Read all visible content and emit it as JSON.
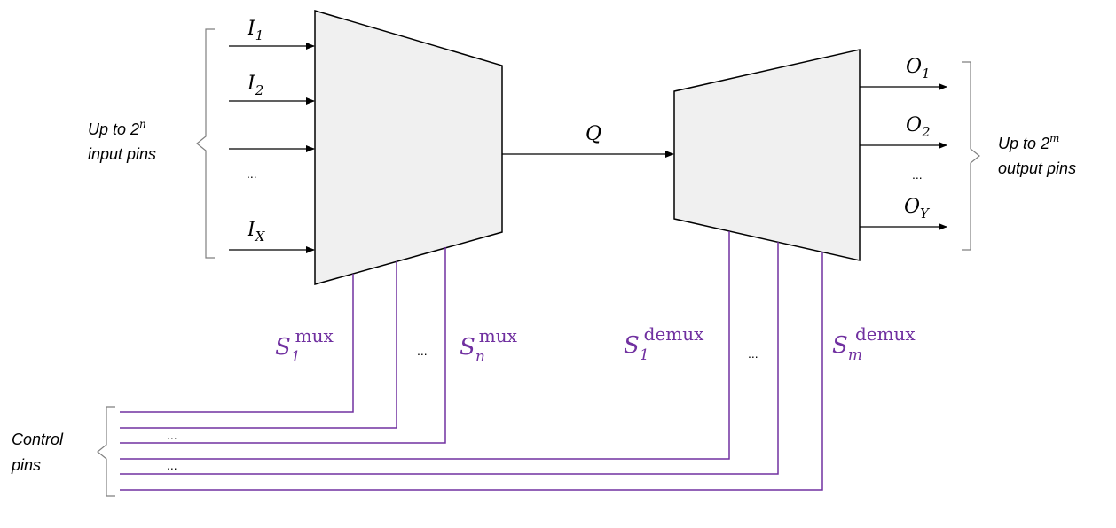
{
  "colors": {
    "block_fill": "#f0f0f0",
    "wire": "#000000",
    "control_wire": "#7030a0",
    "bracket": "#7f7f7f"
  },
  "mux": {
    "inputs": [
      {
        "base": "I",
        "sub": "1"
      },
      {
        "base": "I",
        "sub": "2"
      },
      {
        "ellipsis": "..."
      },
      {
        "base": "I",
        "sub": "X"
      }
    ],
    "label": {
      "line1_prefix": "Up to 2",
      "line1_exp": "n",
      "line2": "input pins"
    }
  },
  "q_label": "Q",
  "demux": {
    "outputs": [
      {
        "base": "O",
        "sub": "1"
      },
      {
        "base": "O",
        "sub": "2"
      },
      {
        "ellipsis": "..."
      },
      {
        "base": "O",
        "sub": "Y"
      }
    ],
    "label": {
      "line1_prefix": "Up to 2",
      "line1_exp": "m",
      "line2": "output pins"
    }
  },
  "select": {
    "mux_first": {
      "base": "S",
      "sub": "1",
      "sup": "mux"
    },
    "mux_last": {
      "base": "S",
      "sub": "n",
      "sup": "mux"
    },
    "demux_first": {
      "base": "S",
      "sub": "1",
      "sup": "demux"
    },
    "demux_last": {
      "base": "S",
      "sub": "m",
      "sup": "demux"
    },
    "mux_ellipsis": "...",
    "demux_ellipsis": "..."
  },
  "control": {
    "label_line1": "Control",
    "label_line2": "pins",
    "ellipsis_1": "...",
    "ellipsis_2": "..."
  }
}
